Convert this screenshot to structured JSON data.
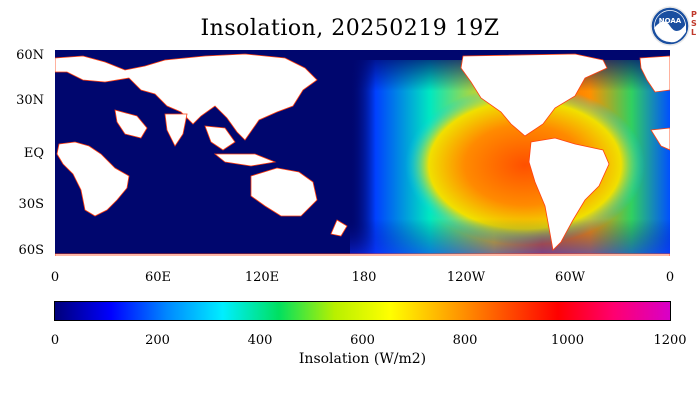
{
  "title": "Insolation, 20250219 19Z",
  "logo": {
    "icon": "noaa-logo",
    "text": "NOAA",
    "side_letters": [
      "P",
      "S",
      "L"
    ]
  },
  "map": {
    "ocean_color": "#00066e",
    "land_color": "#ffffff",
    "lat_labels": [
      "60N",
      "30N",
      "EQ",
      "30S",
      "60S"
    ],
    "lon_labels": [
      "0",
      "60E",
      "120E",
      "180",
      "120W",
      "60W",
      "0"
    ]
  },
  "colorbar": {
    "min": 0,
    "max": 1200,
    "tick_labels": [
      "0",
      "200",
      "400",
      "600",
      "800",
      "1000",
      "1200"
    ],
    "label": "Insolation (W/m2)",
    "colors": [
      "#00007a",
      "#0000ff",
      "#0088ff",
      "#00eeff",
      "#00e060",
      "#b8f000",
      "#ffff00",
      "#ffaa00",
      "#ff5500",
      "#ff0000",
      "#ff0070",
      "#d800c8"
    ]
  }
}
